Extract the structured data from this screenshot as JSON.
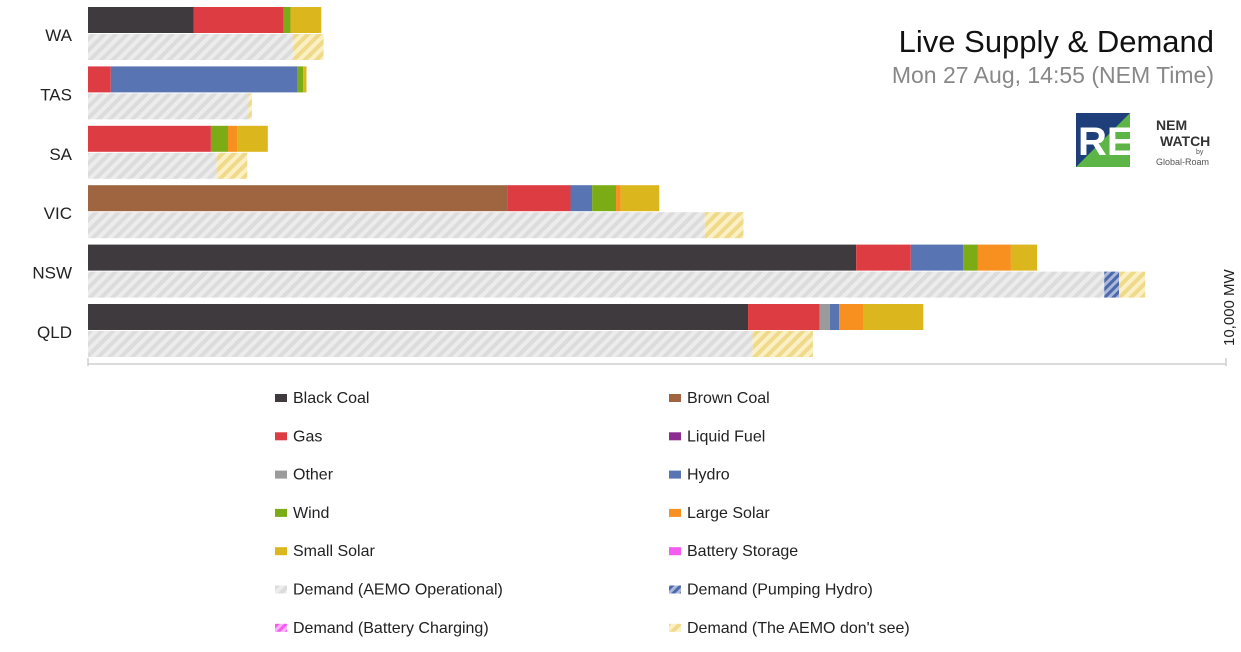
{
  "chart_data": {
    "type": "bar",
    "orientation": "horizontal",
    "stacked": true,
    "title": "Live Supply & Demand",
    "subtitle": "Mon 27 Aug, 14:55 (NEM Time)",
    "scale_label": "10,000 MW",
    "scale_mw": 10000,
    "categories": [
      "WA",
      "TAS",
      "SA",
      "VIC",
      "NSW",
      "QLD"
    ],
    "supply_series": [
      {
        "name": "Black Coal",
        "color": "#3e3a3d",
        "values": [
          930,
          0,
          0,
          0,
          6750,
          5800
        ]
      },
      {
        "name": "Brown Coal",
        "color": "#9e6540",
        "values": [
          0,
          0,
          0,
          3690,
          0,
          0
        ]
      },
      {
        "name": "Gas",
        "color": "#dd3c42",
        "values": [
          790,
          200,
          1080,
          550,
          480,
          630
        ]
      },
      {
        "name": "Liquid Fuel",
        "color": "#8c2e91",
        "values": [
          0,
          0,
          0,
          0,
          0,
          0
        ]
      },
      {
        "name": "Other",
        "color": "#9b9b9b",
        "values": [
          0,
          0,
          0,
          0,
          0,
          90
        ]
      },
      {
        "name": "Hydro",
        "color": "#5874b2",
        "values": [
          0,
          1640,
          0,
          190,
          460,
          80
        ]
      },
      {
        "name": "Wind",
        "color": "#7bab15",
        "values": [
          60,
          50,
          150,
          210,
          130,
          0
        ]
      },
      {
        "name": "Large Solar",
        "color": "#f7901e",
        "values": [
          0,
          0,
          80,
          40,
          290,
          210
        ]
      },
      {
        "name": "Small Solar",
        "color": "#dbb61c",
        "values": [
          270,
          30,
          270,
          340,
          230,
          530
        ]
      },
      {
        "name": "Battery Storage",
        "color": "#f25cef",
        "values": [
          0,
          0,
          0,
          0,
          0,
          0
        ]
      }
    ],
    "demand_series": [
      {
        "name": "Demand (AEMO Operational)",
        "color": "#e3e3e3",
        "pattern": "stripes-light",
        "values": [
          1800,
          1410,
          1130,
          5420,
          8930,
          5840
        ]
      },
      {
        "name": "Demand (Pumping Hydro)",
        "color": "#5874b2",
        "pattern": "stripes-blue",
        "values": [
          0,
          0,
          0,
          0,
          130,
          0
        ]
      },
      {
        "name": "Demand (Battery Charging)",
        "color": "#f25cef",
        "pattern": "stripes-pink",
        "values": [
          0,
          0,
          0,
          0,
          0,
          0
        ]
      },
      {
        "name": "Demand (The AEMO don't see)",
        "color": "#f5e3a1",
        "pattern": "stripes-yellow",
        "values": [
          270,
          30,
          270,
          340,
          230,
          530
        ]
      }
    ],
    "legend_order": [
      "Black Coal",
      "Brown Coal",
      "Gas",
      "Liquid Fuel",
      "Other",
      "Hydro",
      "Wind",
      "Large Solar",
      "Small Solar",
      "Battery Storage",
      "Demand (AEMO Operational)",
      "Demand (Pumping Hydro)",
      "Demand (Battery Charging)",
      "Demand (The AEMO don't see)"
    ],
    "legend_position": "bottom"
  },
  "logos": {
    "re_logo": "RE",
    "nemwatch_line1": "NEM",
    "nemwatch_line2": "WATCH",
    "nemwatch_by": "by",
    "nemwatch_org": "Global-Roam"
  }
}
